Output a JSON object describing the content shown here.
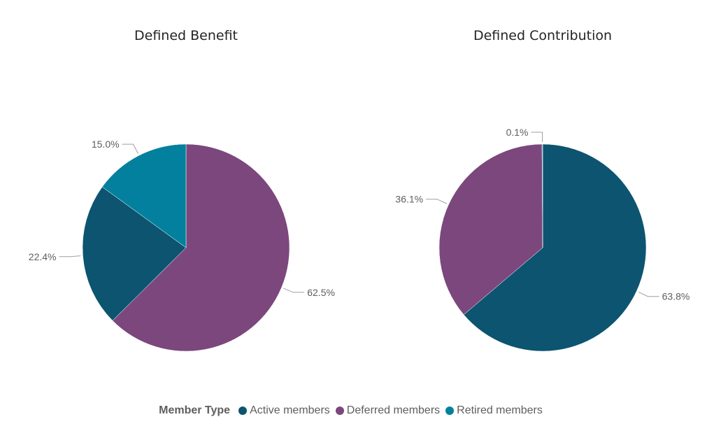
{
  "legend": {
    "title": "Member Type",
    "items": [
      {
        "label": "Active members",
        "color": "#0c5470"
      },
      {
        "label": "Deferred members",
        "color": "#7b477c"
      },
      {
        "label": "Retired members",
        "color": "#02809d"
      }
    ]
  },
  "chart_data": [
    {
      "type": "pie",
      "title": "Defined Benefit",
      "slices": [
        {
          "name": "Deferred members",
          "value": 62.5,
          "label": "62.5%",
          "color": "#7b477c"
        },
        {
          "name": "Active members",
          "value": 22.4,
          "label": "22.4%",
          "color": "#0c5470"
        },
        {
          "name": "Retired members",
          "value": 15.0,
          "label": "15.0%",
          "color": "#02809d"
        }
      ]
    },
    {
      "type": "pie",
      "title": "Defined Contribution",
      "slices": [
        {
          "name": "Active members",
          "value": 63.8,
          "label": "63.8%",
          "color": "#0c5470"
        },
        {
          "name": "Deferred members",
          "value": 36.1,
          "label": "36.1%",
          "color": "#7b477c"
        },
        {
          "name": "Retired members",
          "value": 0.1,
          "label": "0.1%",
          "color": "#02809d"
        }
      ]
    }
  ]
}
